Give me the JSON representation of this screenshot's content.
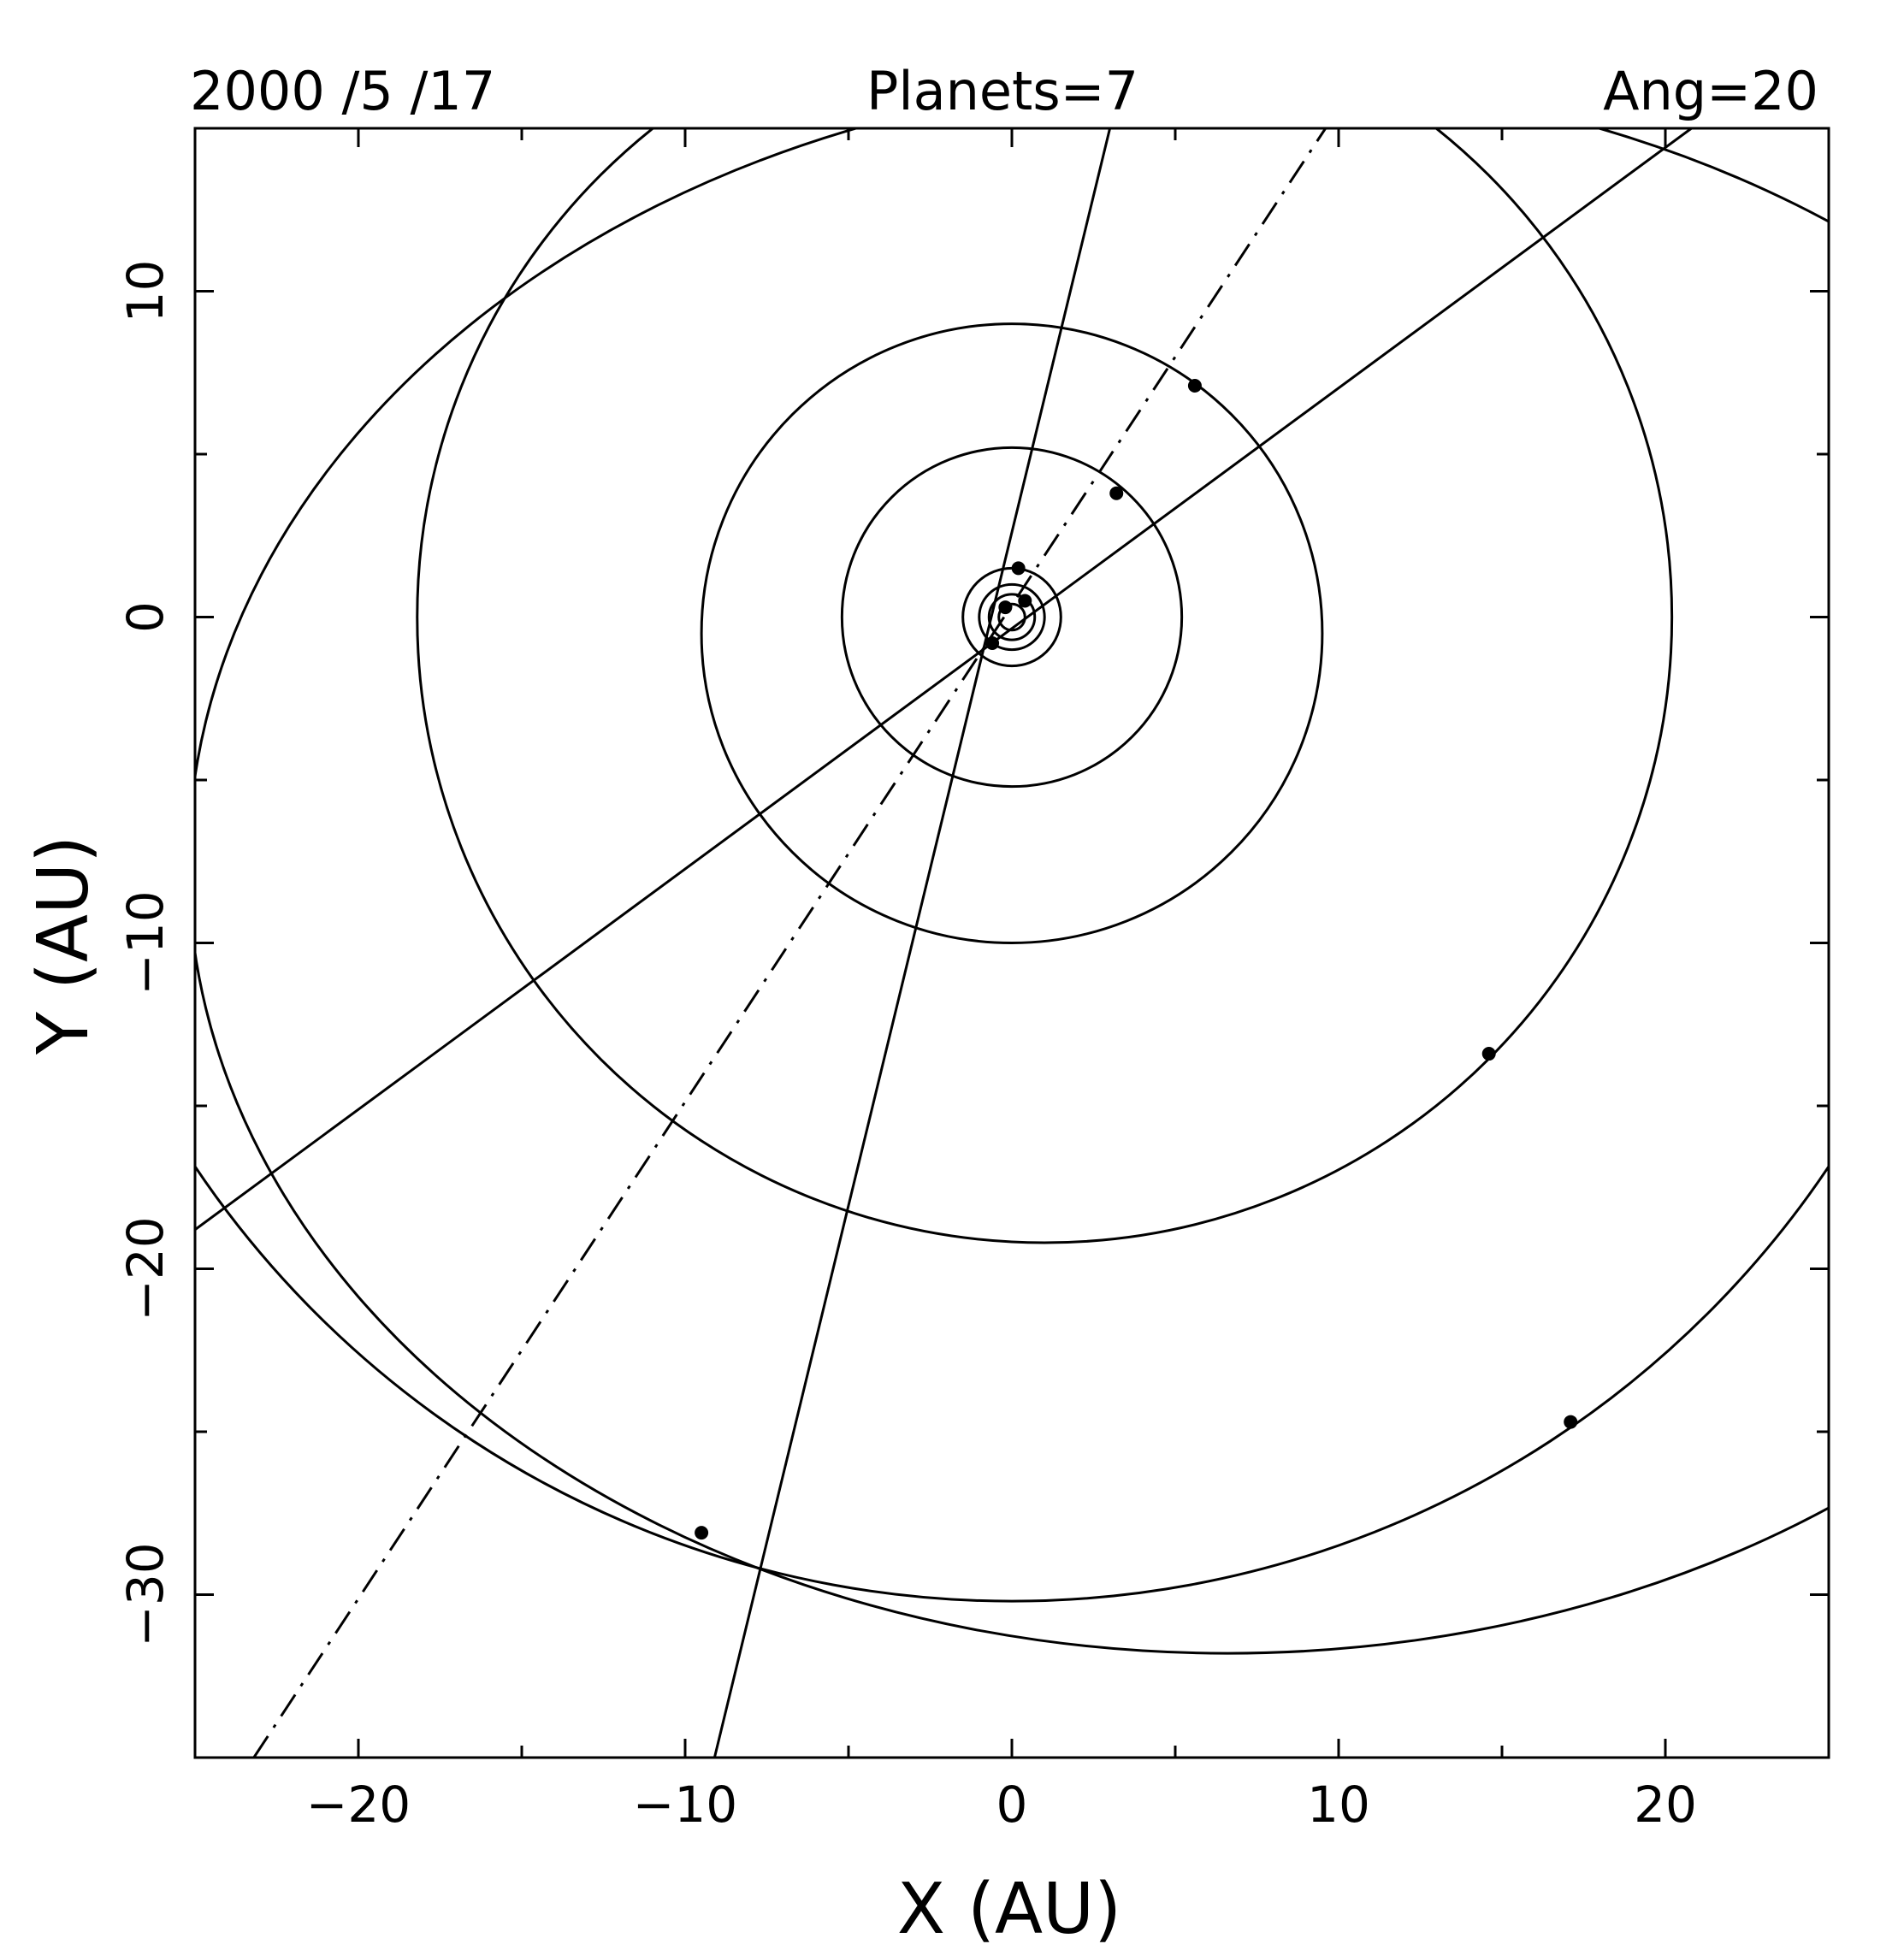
{
  "header": {
    "date": "2000 /5 /17",
    "planets": "Planets=7",
    "angle": "Ang=20"
  },
  "chart_data": {
    "type": "scatter",
    "xlabel": "X (AU)",
    "ylabel": "Y (AU)",
    "xlim": [
      -25,
      25
    ],
    "ylim": [
      -35,
      15
    ],
    "x_ticks": [
      -20,
      -10,
      0,
      10,
      20
    ],
    "x_tick_labels": [
      "−20",
      "−10",
      "0",
      "10",
      "20"
    ],
    "y_ticks": [
      -30,
      -20,
      -10,
      0,
      10
    ],
    "y_tick_labels": [
      "−30",
      "−20",
      "−10",
      "0",
      "10"
    ],
    "grid": false,
    "orbits": [
      {
        "cx": 0,
        "cy": 0,
        "rx": 0.4,
        "ry": 0.4
      },
      {
        "cx": 0,
        "cy": 0,
        "rx": 0.7,
        "ry": 0.7
      },
      {
        "cx": 0,
        "cy": 0,
        "rx": 1.0,
        "ry": 1.0
      },
      {
        "cx": 0,
        "cy": 0,
        "rx": 1.5,
        "ry": 1.5
      },
      {
        "cx": 0,
        "cy": 0,
        "rx": 5.2,
        "ry": 5.2
      },
      {
        "cx": 0,
        "cy": -0.5,
        "rx": 9.5,
        "ry": 9.5
      },
      {
        "cx": 1,
        "cy": 0,
        "rx": 19.2,
        "ry": 19.2
      },
      {
        "cx": 0,
        "cy": -0.1,
        "rx": 30.1,
        "ry": 30.1
      },
      {
        "cx": 6.6,
        "cy": -7.6,
        "rx": 31.8,
        "ry": 24.2
      }
    ],
    "lines": [
      {
        "style": "solid",
        "x": [
          -9.1,
          3.0
        ],
        "y": [
          -35,
          15
        ]
      },
      {
        "style": "solid",
        "x": [
          -25,
          20.8
        ],
        "y": [
          -18.8,
          15
        ]
      },
      {
        "style": "dashdot",
        "x": [
          -23.2,
          9.6
        ],
        "y": [
          -35,
          15
        ]
      }
    ],
    "points": {
      "x": [
        0.4,
        -0.2,
        -0.6,
        0.2,
        3.2,
        5.6,
        14.6,
        17.1,
        -9.5
      ],
      "y": [
        0.5,
        0.3,
        -0.8,
        1.5,
        3.8,
        7.1,
        -13.4,
        -24.7,
        -28.1
      ]
    }
  }
}
